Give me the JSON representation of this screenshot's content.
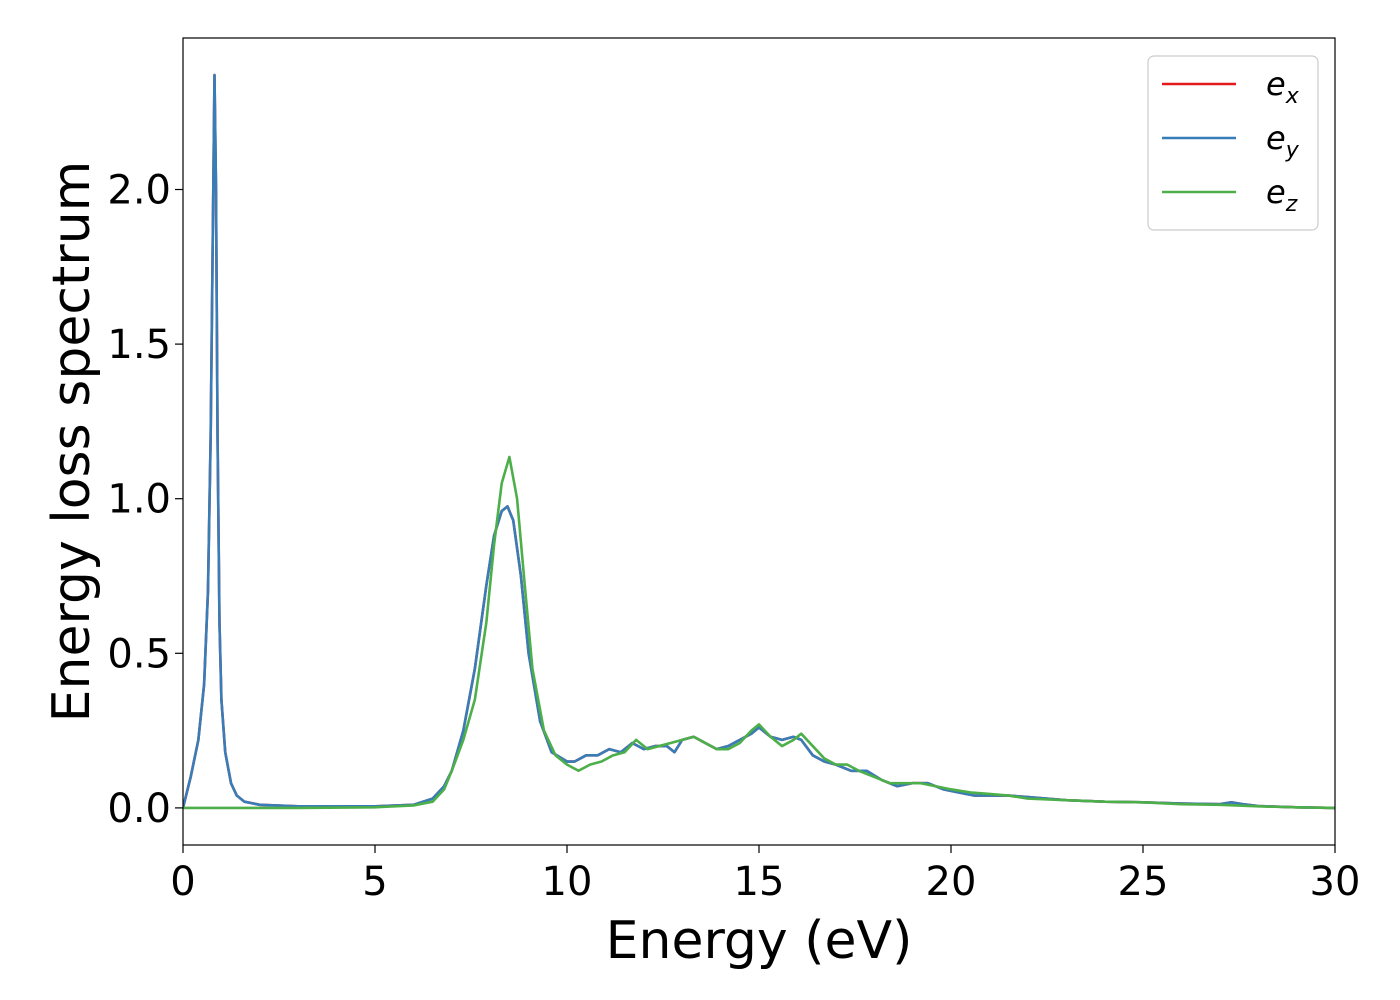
{
  "chart_data": {
    "type": "line",
    "xlabel": "Energy (eV)",
    "ylabel": "Energy loss spectrum",
    "xlim": [
      0,
      30
    ],
    "ylim": [
      -0.12,
      2.49
    ],
    "xticks": [
      0,
      5,
      10,
      15,
      20,
      25,
      30
    ],
    "xtick_labels": [
      "0",
      "5",
      "10",
      "15",
      "20",
      "25",
      "30"
    ],
    "yticks": [
      0.0,
      0.5,
      1.0,
      1.5,
      2.0
    ],
    "ytick_labels": [
      "0.0",
      "0.5",
      "1.0",
      "1.5",
      "2.0"
    ],
    "grid": false,
    "legend_position": "top-right",
    "series": [
      {
        "name": "e",
        "sub": "x",
        "color": "#e41a1c",
        "x": [
          0,
          0.2,
          0.4,
          0.55,
          0.65,
          0.72,
          0.78,
          0.82,
          0.86,
          0.9,
          0.95,
          1.0,
          1.1,
          1.25,
          1.4,
          1.6,
          2.0,
          3.0,
          5.0,
          6.0,
          6.5,
          6.8,
          7.0,
          7.3,
          7.6,
          7.9,
          8.1,
          8.3,
          8.45,
          8.6,
          8.8,
          9.0,
          9.3,
          9.6,
          10.0,
          10.2,
          10.5,
          10.8,
          11.1,
          11.4,
          11.7,
          12.0,
          12.3,
          12.6,
          12.8,
          13.0,
          13.3,
          13.6,
          13.9,
          14.2,
          14.5,
          14.8,
          15.0,
          15.3,
          15.6,
          15.9,
          16.1,
          16.4,
          16.7,
          17.0,
          17.4,
          17.8,
          18.2,
          18.6,
          19.0,
          19.4,
          19.8,
          20.2,
          20.6,
          21.0,
          21.5,
          22.0,
          23.0,
          24.0,
          25.0,
          26.0,
          27.0,
          27.3,
          27.6,
          28.0,
          29.0,
          30.0
        ],
        "y": [
          0.0,
          0.1,
          0.22,
          0.4,
          0.7,
          1.2,
          1.9,
          2.37,
          2.0,
          1.2,
          0.6,
          0.35,
          0.18,
          0.08,
          0.04,
          0.02,
          0.01,
          0.005,
          0.005,
          0.01,
          0.03,
          0.07,
          0.12,
          0.25,
          0.45,
          0.72,
          0.88,
          0.96,
          0.975,
          0.93,
          0.75,
          0.5,
          0.28,
          0.18,
          0.15,
          0.15,
          0.17,
          0.17,
          0.19,
          0.18,
          0.21,
          0.19,
          0.2,
          0.2,
          0.18,
          0.22,
          0.23,
          0.21,
          0.19,
          0.2,
          0.22,
          0.24,
          0.26,
          0.23,
          0.22,
          0.23,
          0.22,
          0.17,
          0.15,
          0.14,
          0.12,
          0.12,
          0.09,
          0.07,
          0.08,
          0.08,
          0.06,
          0.05,
          0.04,
          0.04,
          0.04,
          0.035,
          0.025,
          0.02,
          0.018,
          0.014,
          0.012,
          0.018,
          0.012,
          0.006,
          0.002,
          0.0
        ]
      },
      {
        "name": "e",
        "sub": "y",
        "color": "#377eb8",
        "x": [
          0,
          0.2,
          0.4,
          0.55,
          0.65,
          0.72,
          0.78,
          0.82,
          0.86,
          0.9,
          0.95,
          1.0,
          1.1,
          1.25,
          1.4,
          1.6,
          2.0,
          3.0,
          5.0,
          6.0,
          6.5,
          6.8,
          7.0,
          7.3,
          7.6,
          7.9,
          8.1,
          8.3,
          8.45,
          8.6,
          8.8,
          9.0,
          9.3,
          9.6,
          10.0,
          10.2,
          10.5,
          10.8,
          11.1,
          11.4,
          11.7,
          12.0,
          12.3,
          12.6,
          12.8,
          13.0,
          13.3,
          13.6,
          13.9,
          14.2,
          14.5,
          14.8,
          15.0,
          15.3,
          15.6,
          15.9,
          16.1,
          16.4,
          16.7,
          17.0,
          17.4,
          17.8,
          18.2,
          18.6,
          19.0,
          19.4,
          19.8,
          20.2,
          20.6,
          21.0,
          21.5,
          22.0,
          23.0,
          24.0,
          25.0,
          26.0,
          27.0,
          27.3,
          27.6,
          28.0,
          29.0,
          30.0
        ],
        "y": [
          0.0,
          0.1,
          0.22,
          0.4,
          0.7,
          1.2,
          1.9,
          2.37,
          2.0,
          1.2,
          0.6,
          0.35,
          0.18,
          0.08,
          0.04,
          0.02,
          0.01,
          0.005,
          0.005,
          0.01,
          0.03,
          0.07,
          0.12,
          0.25,
          0.45,
          0.72,
          0.88,
          0.96,
          0.975,
          0.93,
          0.75,
          0.5,
          0.28,
          0.18,
          0.15,
          0.15,
          0.17,
          0.17,
          0.19,
          0.18,
          0.21,
          0.19,
          0.2,
          0.2,
          0.18,
          0.22,
          0.23,
          0.21,
          0.19,
          0.2,
          0.22,
          0.24,
          0.26,
          0.23,
          0.22,
          0.23,
          0.22,
          0.17,
          0.15,
          0.14,
          0.12,
          0.12,
          0.09,
          0.07,
          0.08,
          0.08,
          0.06,
          0.05,
          0.04,
          0.04,
          0.04,
          0.035,
          0.025,
          0.02,
          0.018,
          0.014,
          0.012,
          0.018,
          0.012,
          0.006,
          0.002,
          0.0
        ]
      },
      {
        "name": "e",
        "sub": "z",
        "color": "#4daf4a",
        "x": [
          0,
          1.0,
          3.0,
          5.0,
          6.0,
          6.5,
          6.8,
          7.0,
          7.3,
          7.6,
          7.9,
          8.1,
          8.3,
          8.5,
          8.7,
          8.9,
          9.1,
          9.4,
          9.7,
          10.0,
          10.3,
          10.6,
          10.9,
          11.2,
          11.5,
          11.8,
          12.1,
          12.4,
          12.7,
          13.0,
          13.3,
          13.6,
          13.9,
          14.2,
          14.5,
          14.8,
          15.0,
          15.3,
          15.6,
          15.9,
          16.1,
          16.4,
          16.7,
          17.0,
          17.3,
          17.6,
          18.0,
          18.4,
          18.8,
          19.2,
          19.6,
          20.0,
          20.5,
          21.0,
          21.5,
          22.0,
          23.0,
          24.0,
          25.0,
          26.0,
          27.0,
          28.0,
          29.0,
          30.0
        ],
        "y": [
          0.0,
          0.0,
          0.0,
          0.002,
          0.008,
          0.02,
          0.06,
          0.12,
          0.22,
          0.35,
          0.6,
          0.85,
          1.05,
          1.135,
          1.0,
          0.72,
          0.45,
          0.25,
          0.17,
          0.14,
          0.12,
          0.14,
          0.15,
          0.17,
          0.18,
          0.22,
          0.19,
          0.2,
          0.21,
          0.22,
          0.23,
          0.21,
          0.19,
          0.19,
          0.21,
          0.25,
          0.27,
          0.23,
          0.2,
          0.22,
          0.24,
          0.2,
          0.16,
          0.14,
          0.14,
          0.12,
          0.1,
          0.08,
          0.08,
          0.08,
          0.07,
          0.06,
          0.05,
          0.045,
          0.04,
          0.03,
          0.025,
          0.02,
          0.018,
          0.012,
          0.01,
          0.005,
          0.002,
          0.0
        ]
      }
    ]
  }
}
